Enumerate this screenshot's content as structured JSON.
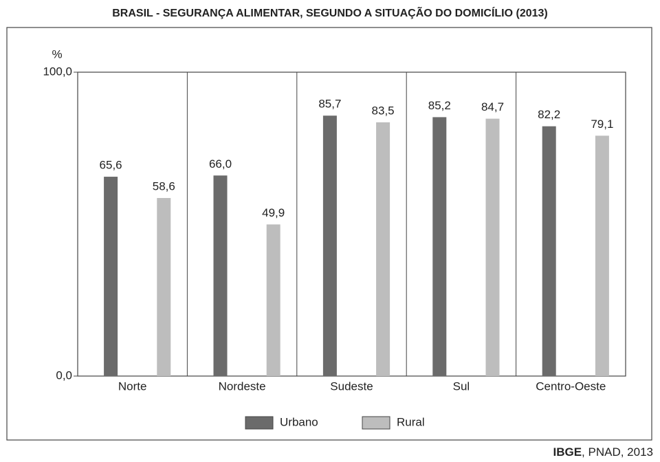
{
  "chart_data": {
    "type": "bar",
    "title": "BRASIL - SEGURANÇA ALIMENTAR,  SEGUNDO A SITUAÇÃO DO DOMICÍLIO (2013)",
    "y_label": "%",
    "categories": [
      "Norte",
      "Nordeste",
      "Sudeste",
      "Sul",
      "Centro-Oeste"
    ],
    "series": [
      {
        "name": "Urbano",
        "color": "#6b6b6b",
        "values": [
          65.6,
          66.0,
          85.7,
          85.2,
          82.2
        ],
        "value_labels": [
          "65,6",
          "66,0",
          "85,7",
          "85,2",
          "82,2"
        ]
      },
      {
        "name": "Rural",
        "color": "#bdbdbd",
        "values": [
          58.6,
          49.9,
          83.5,
          84.7,
          79.1
        ],
        "value_labels": [
          "58,6",
          "49,9",
          "83,5",
          "84,7",
          "79,1"
        ]
      }
    ],
    "ylim": [
      0,
      100
    ],
    "yticks": [
      {
        "value": 0,
        "label": "0,0"
      },
      {
        "value": 100,
        "label": "100,0"
      }
    ],
    "legend": "bottom",
    "source": {
      "org": "IBGE",
      "rest": ", PNAD, 2013"
    }
  }
}
